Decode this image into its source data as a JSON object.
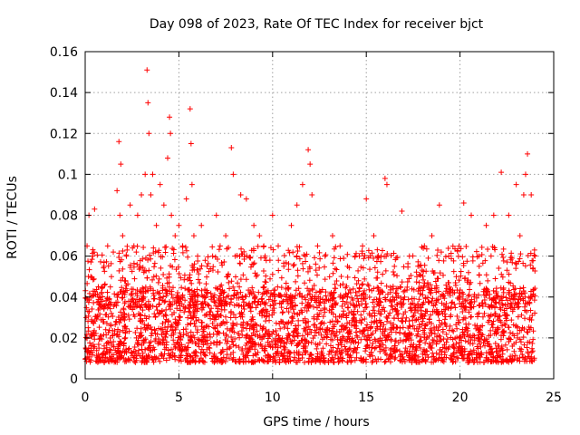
{
  "chart_data": {
    "type": "scatter",
    "title": "Day 098 of 2023, Rate Of TEC Index for receiver bjct",
    "xlabel": "GPS time / hours",
    "ylabel": "ROTI / TECUs",
    "xlim": [
      0,
      25
    ],
    "ylim": [
      0,
      0.16
    ],
    "x_ticks": [
      0,
      5,
      10,
      15,
      20,
      25
    ],
    "x_tick_labels": [
      "0",
      "5",
      "10",
      "15",
      "20",
      "25"
    ],
    "y_ticks": [
      0,
      0.02,
      0.04,
      0.06,
      0.08,
      0.1,
      0.12,
      0.14,
      0.16
    ],
    "y_tick_labels": [
      "0",
      "0.02",
      "0.04",
      "0.06",
      "0.08",
      "0.1",
      "0.12",
      "0.14",
      "0.16"
    ],
    "grid": true,
    "marker": "+",
    "color": "#ff0000",
    "series": [
      {
        "name": "ROTI",
        "x": [
          0.05,
          0.1,
          0.2,
          0.3,
          0.4,
          0.5,
          0.7,
          0.9,
          1.0,
          1.2,
          1.4,
          1.5,
          1.7,
          1.8,
          1.85,
          1.9,
          2.0,
          2.2,
          2.4,
          2.6,
          2.8,
          3.0,
          3.2,
          3.3,
          3.35,
          3.4,
          3.5,
          3.6,
          3.8,
          4.0,
          4.2,
          4.4,
          4.5,
          4.55,
          4.6,
          4.8,
          5.0,
          5.2,
          5.4,
          5.6,
          5.65,
          5.7,
          5.8,
          6.0,
          6.2,
          6.5,
          6.8,
          7.0,
          7.2,
          7.5,
          7.8,
          7.9,
          8.0,
          8.3,
          8.6,
          9.0,
          9.3,
          9.6,
          10.0,
          10.3,
          10.6,
          11.0,
          11.3,
          11.6,
          11.9,
          12.0,
          12.1,
          12.4,
          12.8,
          13.2,
          13.6,
          14.0,
          14.4,
          14.8,
          15.0,
          15.4,
          15.8,
          16.0,
          16.1,
          16.5,
          16.9,
          17.3,
          17.7,
          18.1,
          18.5,
          18.9,
          19.0,
          19.4,
          19.8,
          20.2,
          20.6,
          21.0,
          21.4,
          21.8,
          22.2,
          22.6,
          23.0,
          23.2,
          23.4,
          23.5,
          23.6,
          23.8,
          24.0
        ],
        "y": [
          0.03,
          0.065,
          0.08,
          0.05,
          0.06,
          0.083,
          0.045,
          0.035,
          0.055,
          0.065,
          0.05,
          0.062,
          0.092,
          0.116,
          0.08,
          0.105,
          0.07,
          0.06,
          0.085,
          0.065,
          0.08,
          0.09,
          0.1,
          0.151,
          0.135,
          0.12,
          0.09,
          0.1,
          0.075,
          0.095,
          0.085,
          0.108,
          0.128,
          0.12,
          0.08,
          0.07,
          0.075,
          0.065,
          0.088,
          0.132,
          0.115,
          0.095,
          0.07,
          0.06,
          0.075,
          0.055,
          0.06,
          0.08,
          0.065,
          0.07,
          0.113,
          0.1,
          0.06,
          0.09,
          0.088,
          0.075,
          0.07,
          0.06,
          0.08,
          0.065,
          0.055,
          0.075,
          0.085,
          0.095,
          0.112,
          0.105,
          0.09,
          0.065,
          0.06,
          0.07,
          0.065,
          0.055,
          0.06,
          0.065,
          0.088,
          0.07,
          0.06,
          0.098,
          0.095,
          0.055,
          0.082,
          0.06,
          0.05,
          0.065,
          0.07,
          0.085,
          0.062,
          0.06,
          0.05,
          0.086,
          0.08,
          0.06,
          0.075,
          0.08,
          0.101,
          0.08,
          0.095,
          0.07,
          0.09,
          0.1,
          0.11,
          0.09,
          0.06
        ]
      }
    ],
    "band": {
      "description_values": "dense cluster of low ROTI values",
      "y_low": 0.008,
      "y_high": 0.045,
      "x_range": [
        0,
        24
      ]
    }
  }
}
